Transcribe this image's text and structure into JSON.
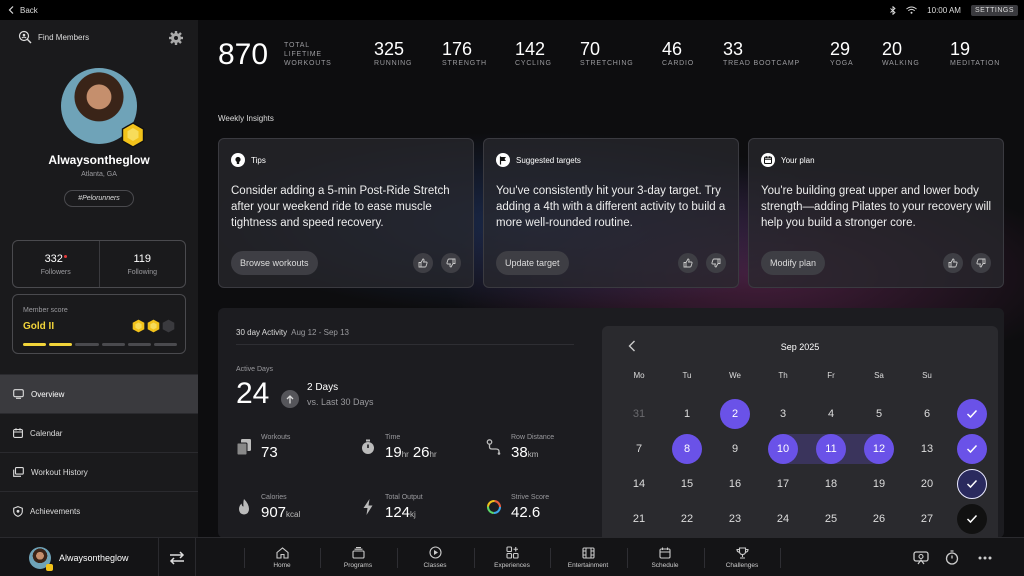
{
  "topbar": {
    "back_label": "Back",
    "time": "10:00 AM",
    "settings_label": "SETTINGS"
  },
  "sidebar": {
    "find_members": "Find Members",
    "profile": {
      "username": "Alwaysontheglow",
      "location": "Atlanta, GA",
      "tag": "#Pelorunners"
    },
    "followers": {
      "count": "332",
      "label": "Followers"
    },
    "following": {
      "count": "119",
      "label": "Following"
    },
    "member_score": {
      "title": "Member score",
      "level": "Gold II",
      "progress_segments_filled": 2,
      "progress_segments_total": 6,
      "hex_filled": 2,
      "hex_total": 3,
      "accent": "#f2d43a"
    },
    "nav": [
      {
        "label": "Overview",
        "icon": "screen-icon",
        "active": true
      },
      {
        "label": "Calendar",
        "icon": "calendar-icon",
        "active": false
      },
      {
        "label": "Workout History",
        "icon": "history-icon",
        "active": false
      },
      {
        "label": "Achievements",
        "icon": "shield-icon",
        "active": false
      }
    ]
  },
  "stats": {
    "total": {
      "value": "870",
      "label": "TOTAL LIFETIME WORKOUTS"
    },
    "items": [
      {
        "value": "325",
        "label": "RUNNING"
      },
      {
        "value": "176",
        "label": "STRENGTH"
      },
      {
        "value": "142",
        "label": "CYCLING"
      },
      {
        "value": "70",
        "label": "STRETCHING"
      },
      {
        "value": "46",
        "label": "CARDIO"
      },
      {
        "value": "33",
        "label": "TREAD BOOTCAMP"
      },
      {
        "value": "29",
        "label": "YOGA"
      },
      {
        "value": "20",
        "label": "WALKING"
      },
      {
        "value": "19",
        "label": "MEDITATION"
      }
    ]
  },
  "weekly_insights": {
    "title": "Weekly Insights",
    "cards": [
      {
        "title": "Tips",
        "icon": "lightbulb-icon",
        "text": "Consider adding a 5-min Post-Ride Stretch after your weekend ride to ease muscle tightness and speed recovery.",
        "button": "Browse workouts"
      },
      {
        "title": "Suggested targets",
        "icon": "flag-icon",
        "text": "You've consistently hit your 3-day target. Try adding a 4th with a different activity to build a more well-rounded routine.",
        "button": "Update target"
      },
      {
        "title": "Your plan",
        "icon": "calendar-icon",
        "text": "You're building great upper and lower body strength—adding Pilates to your recovery will help you build a stronger core.",
        "button": "Modify plan"
      }
    ]
  },
  "activity": {
    "title": "30 day Activity",
    "range": "Aug 12 - Sep 13",
    "active_days": {
      "label": "Active Days",
      "value": "24",
      "delta": "2 Days",
      "delta_sub": "vs. Last 30 Days"
    },
    "metrics": [
      {
        "label": "Workouts",
        "value": "73",
        "unit": "",
        "icon": "workouts-icon"
      },
      {
        "label": "Time",
        "value": "19",
        "unit": "hr",
        "value2": "26",
        "unit2": "hr",
        "icon": "timer-icon"
      },
      {
        "label": "Row Distance",
        "value": "38",
        "unit": "km",
        "icon": "route-icon"
      },
      {
        "label": "Calories",
        "value": "907",
        "unit": "kcal",
        "icon": "flame-icon"
      },
      {
        "label": "Total Output",
        "value": "124",
        "unit": "kj",
        "icon": "bolt-icon"
      },
      {
        "label": "Strive Score",
        "value": "42.6",
        "unit": "",
        "icon": "strive-ring-icon"
      }
    ]
  },
  "calendar": {
    "month": "Sep 2025",
    "weekdays": [
      "Mo",
      "Tu",
      "We",
      "Th",
      "Fr",
      "Sa",
      "Su"
    ],
    "weeks": [
      [
        {
          "d": "31",
          "s": "muted"
        },
        {
          "d": "1",
          "s": ""
        },
        {
          "d": "2",
          "s": "sel"
        },
        {
          "d": "3",
          "s": ""
        },
        {
          "d": "4",
          "s": ""
        },
        {
          "d": "5",
          "s": ""
        },
        {
          "d": "6",
          "s": ""
        },
        {
          "d": "",
          "s": "check"
        }
      ],
      [
        {
          "d": "7",
          "s": ""
        },
        {
          "d": "8",
          "s": "sel"
        },
        {
          "d": "9",
          "s": ""
        },
        {
          "d": "10",
          "s": "sel"
        },
        {
          "d": "11",
          "s": "sel"
        },
        {
          "d": "12",
          "s": "sel"
        },
        {
          "d": "13",
          "s": ""
        },
        {
          "d": "",
          "s": "check"
        }
      ],
      [
        {
          "d": "14",
          "s": ""
        },
        {
          "d": "15",
          "s": ""
        },
        {
          "d": "16",
          "s": ""
        },
        {
          "d": "17",
          "s": ""
        },
        {
          "d": "18",
          "s": ""
        },
        {
          "d": "19",
          "s": ""
        },
        {
          "d": "20",
          "s": ""
        },
        {
          "d": "",
          "s": "check-outline"
        }
      ],
      [
        {
          "d": "21",
          "s": ""
        },
        {
          "d": "22",
          "s": ""
        },
        {
          "d": "23",
          "s": ""
        },
        {
          "d": "24",
          "s": ""
        },
        {
          "d": "25",
          "s": ""
        },
        {
          "d": "26",
          "s": ""
        },
        {
          "d": "27",
          "s": ""
        },
        {
          "d": "",
          "s": "check-dark"
        }
      ]
    ],
    "accent": "#6a52e8"
  },
  "bottombar": {
    "username": "Alwaysontheglow",
    "tabs": [
      {
        "label": "Home",
        "icon": "home-icon"
      },
      {
        "label": "Programs",
        "icon": "programs-icon"
      },
      {
        "label": "Classes",
        "icon": "play-icon"
      },
      {
        "label": "Experiences",
        "icon": "experiences-icon"
      },
      {
        "label": "Entertainment",
        "icon": "film-icon"
      },
      {
        "label": "Schedule",
        "icon": "schedule-icon"
      },
      {
        "label": "Challenges",
        "icon": "trophy-icon"
      }
    ]
  }
}
